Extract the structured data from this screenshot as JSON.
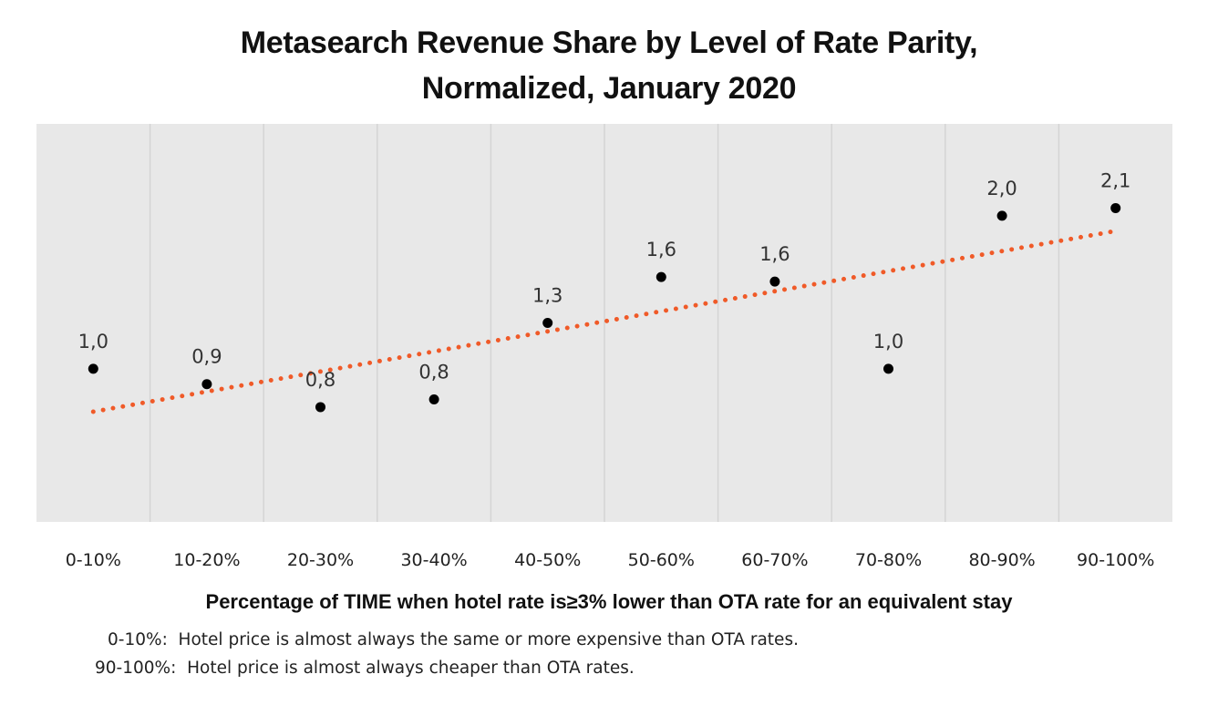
{
  "chart_data": {
    "type": "scatter",
    "title_line1": "Metasearch Revenue Share by Level of Rate Parity,",
    "title_line2": "Normalized, January 2020",
    "xlabel": "Percentage of TIME when hotel rate is≥3% lower than OTA rate for an equivalent stay",
    "ylabel": "",
    "categories": [
      "0-10%",
      "10-20%",
      "20-30%",
      "30-40%",
      "40-50%",
      "50-60%",
      "60-70%",
      "70-80%",
      "80-90%",
      "90-100%"
    ],
    "values": [
      1.0,
      0.9,
      0.75,
      0.8,
      1.3,
      1.6,
      1.57,
      1.0,
      2.0,
      2.05
    ],
    "value_labels": [
      "1,0",
      "0,9",
      "0,8",
      "0,8",
      "1,3",
      "1,6",
      "1,6",
      "1,0",
      "2,0",
      "2,1"
    ],
    "trendline": {
      "type": "linear",
      "style": "dotted",
      "start": 0.72,
      "end": 1.9
    },
    "ylim": [
      0,
      2.6
    ],
    "grid": "vertical",
    "colors": {
      "plot_bg": "#e8e8e8",
      "grid": "#d4d4d4",
      "point": "#000000",
      "trend": "#f05a28"
    }
  },
  "notes": [
    "0-10%:  Hotel price is almost always the same or more expensive than OTA rates.",
    "90-100%:  Hotel price is almost always cheaper than OTA rates."
  ]
}
